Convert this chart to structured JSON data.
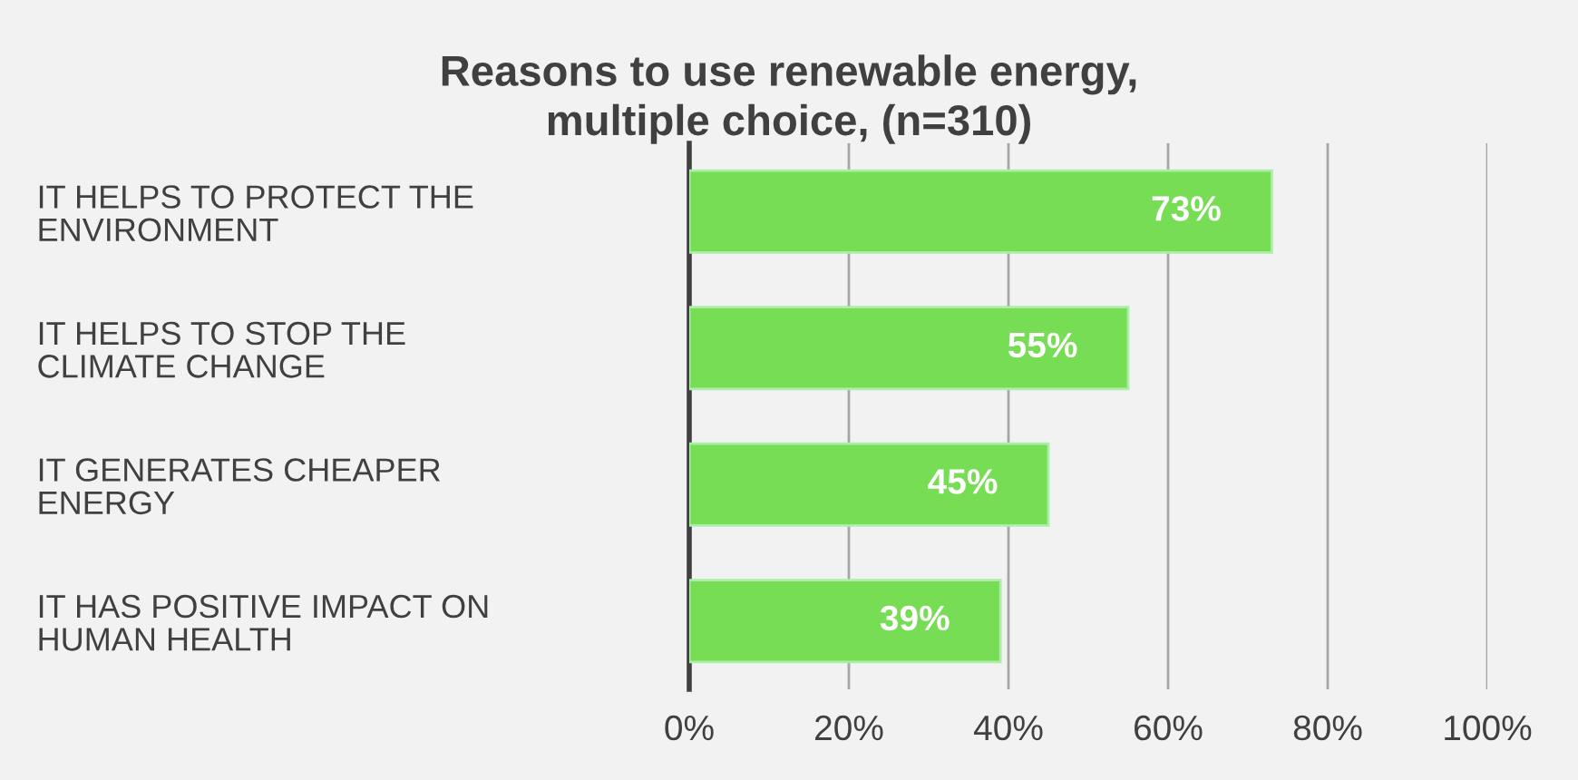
{
  "chart_data": {
    "type": "bar",
    "orientation": "horizontal",
    "title": "Reasons to use renewable energy,\nmultiple choice, (n=310)",
    "categories": [
      "IT HELPS TO PROTECT THE\nENVIRONMENT",
      "IT HELPS TO STOP THE\nCLIMATE CHANGE",
      "IT GENERATES CHEAPER\nENERGY",
      "IT HAS POSITIVE IMPACT ON\nHUMAN HEALTH"
    ],
    "values": [
      73,
      55,
      45,
      39
    ],
    "value_labels": [
      "73%",
      "55%",
      "45%",
      "39%"
    ],
    "color": "#77dd55",
    "xlim": [
      0,
      100
    ],
    "xticks": [
      {
        "value": 0,
        "label": "0%"
      },
      {
        "value": 20,
        "label": "20%"
      },
      {
        "value": 40,
        "label": "40%"
      },
      {
        "value": 60,
        "label": "60%"
      },
      {
        "value": 80,
        "label": "80%"
      },
      {
        "value": 100,
        "label": "100%"
      }
    ],
    "grid": "x",
    "legend": false
  }
}
